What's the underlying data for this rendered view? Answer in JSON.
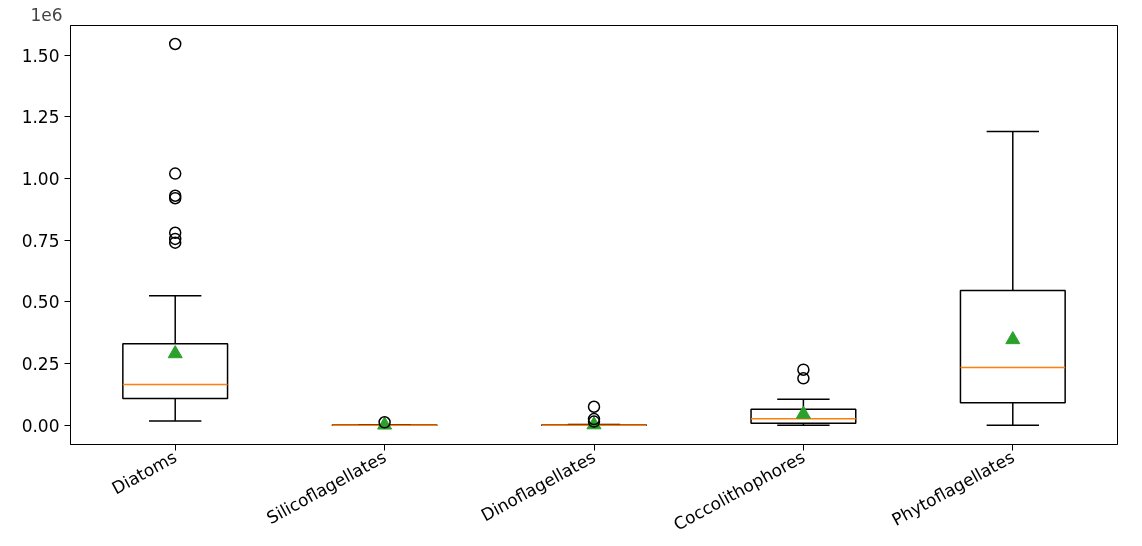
{
  "chart_data": {
    "type": "box",
    "categories": [
      "Diatoms",
      "Silicoflagellates",
      "Dinoflagellates",
      "Coccolithophores",
      "Phytoflagellates"
    ],
    "boxes": [
      {
        "low": 0.017,
        "q1": 0.108,
        "median": 0.165,
        "q3": 0.33,
        "high": 0.525,
        "mean": 0.29,
        "outliers": [
          0.74,
          0.755,
          0.78,
          0.92,
          0.93,
          1.02,
          1.545
        ]
      },
      {
        "low": 0,
        "q1": 0,
        "median": 0,
        "q3": 0.001,
        "high": 0.002,
        "mean": 0.001,
        "outliers": [
          0.012
        ]
      },
      {
        "low": 0,
        "q1": 0,
        "median": 0,
        "q3": 0.001,
        "high": 0.003,
        "mean": 0.002,
        "outliers": [
          0.015,
          0.025,
          0.075
        ]
      },
      {
        "low": 0,
        "q1": 0.008,
        "median": 0.026,
        "q3": 0.065,
        "high": 0.105,
        "mean": 0.045,
        "outliers": [
          0.19,
          0.225
        ]
      },
      {
        "low": 0,
        "q1": 0.091,
        "median": 0.234,
        "q3": 0.546,
        "high": 1.19,
        "mean": 0.347
      }
    ],
    "ylim": [
      -0.078,
      1.62
    ],
    "yticks": [
      {
        "value": 0,
        "label": "0.00"
      },
      {
        "value": 0.25,
        "label": "0.25"
      },
      {
        "value": 0.5,
        "label": "0.50"
      },
      {
        "value": 0.75,
        "label": "0.75"
      },
      {
        "value": 1,
        "label": "1.00"
      },
      {
        "value": 1.25,
        "label": "1.25"
      },
      {
        "value": 1.5,
        "label": "1.50"
      }
    ],
    "annotations": [
      "1e6"
    ],
    "grid": false
  }
}
